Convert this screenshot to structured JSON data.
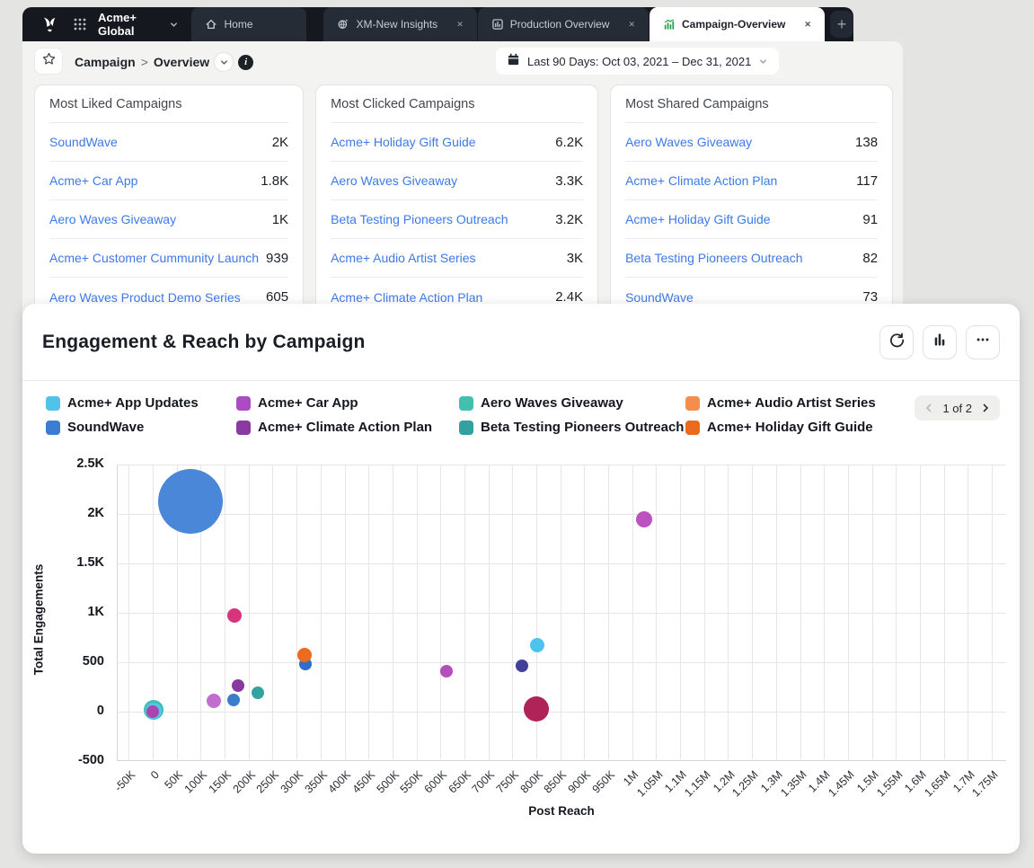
{
  "app_bar": {
    "logo_icon": "sprinklr-logo-icon",
    "launcher_icon": "app-launcher-icon",
    "workspace_label": "Acme+ Global",
    "tabs": [
      {
        "label": "Home",
        "icon": "home-icon",
        "active": false,
        "closable": false
      },
      {
        "label": "XM-New Insights",
        "icon": "insights-globe-icon",
        "active": false,
        "closable": true
      },
      {
        "label": "Production Overview",
        "icon": "dashboard-icon",
        "active": false,
        "closable": true
      },
      {
        "label": "Campaign-Overview",
        "icon": "campaign-chart-icon",
        "active": true,
        "closable": true
      }
    ],
    "add_tab_label": "+"
  },
  "toolbar": {
    "favorite_icon": "star-icon",
    "breadcrumb": {
      "section": "Campaign",
      "separator": ">",
      "page": "Overview"
    },
    "breadcrumb_expand_icon": "chevron-down-icon",
    "info_icon": "info-icon",
    "date_range": {
      "icon": "calendar-icon",
      "label": "Last 90 Days: Oct 03, 2021 – Dec 31, 2021"
    }
  },
  "leaderboards": [
    {
      "title": "Most Liked Campaigns",
      "rows": [
        {
          "campaign": "SoundWave",
          "value": "2K"
        },
        {
          "campaign": "Acme+ Car App",
          "value": "1.8K"
        },
        {
          "campaign": "Aero Waves Giveaway",
          "value": "1K"
        },
        {
          "campaign": "Acme+ Customer Cummunity Launch",
          "value": "939"
        },
        {
          "campaign": "Aero Waves Product Demo Series",
          "value": "605"
        }
      ]
    },
    {
      "title": "Most Clicked Campaigns",
      "rows": [
        {
          "campaign": "Acme+ Holiday Gift Guide",
          "value": "6.2K"
        },
        {
          "campaign": "Aero Waves Giveaway",
          "value": "3.3K"
        },
        {
          "campaign": "Beta Testing Pioneers Outreach",
          "value": "3.2K"
        },
        {
          "campaign": "Acme+ Audio Artist Series",
          "value": "3K"
        },
        {
          "campaign": "Acme+ Climate Action Plan",
          "value": "2.4K"
        }
      ]
    },
    {
      "title": "Most Shared Campaigns",
      "rows": [
        {
          "campaign": "Aero Waves Giveaway",
          "value": "138"
        },
        {
          "campaign": "Acme+ Climate Action Plan",
          "value": "117"
        },
        {
          "campaign": "Acme+ Holiday Gift Guide",
          "value": "91"
        },
        {
          "campaign": "Beta Testing Pioneers Outreach",
          "value": "82"
        },
        {
          "campaign": "SoundWave",
          "value": "73"
        }
      ]
    }
  ],
  "widget": {
    "title": "Engagement & Reach by Campaign",
    "action_icons": [
      "refresh-icon",
      "column-chart-icon",
      "more-options-icon"
    ],
    "pagination": {
      "label": "1 of 2",
      "prev_disabled": true
    }
  },
  "chart_data": {
    "type": "scatter",
    "subtype": "bubble",
    "title": "Engagement & Reach by Campaign",
    "xlabel": "Post Reach",
    "ylabel": "Total Engagements",
    "grid": true,
    "legend_position": "top",
    "legend": [
      {
        "label": "Acme+ App Updates",
        "color": "#4FC3EA"
      },
      {
        "label": "Acme+ Car App",
        "color": "#AC4BC4"
      },
      {
        "label": "Aero Waves Giveaway",
        "color": "#43BFAF"
      },
      {
        "label": "Acme+ Audio Artist Series",
        "color": "#F68E4B"
      },
      {
        "label": "SoundWave",
        "color": "#3C7CD2"
      },
      {
        "label": "Acme+ Climate Action Plan",
        "color": "#8A3AA2"
      },
      {
        "label": "Beta Testing Pioneers Outreach",
        "color": "#34A0A0"
      },
      {
        "label": "Acme+ Holiday Gift Guide",
        "color": "#EB6A1D"
      }
    ],
    "xlim": [
      -75000,
      1780000
    ],
    "ylim": [
      -500,
      2500
    ],
    "x_tick_values": [
      -50000,
      0,
      50000,
      100000,
      150000,
      200000,
      250000,
      300000,
      350000,
      400000,
      450000,
      500000,
      550000,
      600000,
      650000,
      700000,
      750000,
      800000,
      850000,
      900000,
      950000,
      1000000,
      1050000,
      1100000,
      1150000,
      1200000,
      1250000,
      1300000,
      1350000,
      1400000,
      1450000,
      1500000,
      1550000,
      1600000,
      1650000,
      1700000,
      1750000
    ],
    "x_tick_labels": [
      "-50K",
      "0",
      "50K",
      "100K",
      "150K",
      "200K",
      "250K",
      "300K",
      "350K",
      "400K",
      "450K",
      "500K",
      "550K",
      "600K",
      "650K",
      "700K",
      "750K",
      "800K",
      "850K",
      "900K",
      "950K",
      "1M",
      "1.05M",
      "1.1M",
      "1.15M",
      "1.2M",
      "1.25M",
      "1.3M",
      "1.35M",
      "1.4M",
      "1.45M",
      "1.5M",
      "1.55M",
      "1.6M",
      "1.65M",
      "1.7M",
      "1.75M"
    ],
    "y_tick_values": [
      2500,
      2000,
      1500,
      1000,
      500,
      0,
      -500
    ],
    "y_tick_labels": [
      "2.5K",
      "2K",
      "1.5K",
      "1K",
      "500",
      "0",
      "-500"
    ],
    "points": [
      {
        "label": "SoundWave",
        "color": "#4A87D9",
        "x": 78000,
        "y": 2130,
        "r": 36
      },
      {
        "label": "",
        "color": "#B02358",
        "x": 800000,
        "y": 25,
        "r": 14
      },
      {
        "label": "Aero Waves Giveaway",
        "color": "#3FBFB4",
        "x": 2000,
        "y": 15,
        "r": 11
      },
      {
        "label": "Acme+ App Updates",
        "color": "#56C5EA",
        "x": 2000,
        "y": 12,
        "r": 9
      },
      {
        "label": "",
        "color": "#AD44AD",
        "x": 0,
        "y": 0,
        "r": 7
      },
      {
        "label": "",
        "color": "#D6347C",
        "x": 170000,
        "y": 975,
        "r": 8
      },
      {
        "label": "SoundWave",
        "color": "#2F70C5",
        "x": 318000,
        "y": 485,
        "r": 7
      },
      {
        "label": "Acme+ Holiday Gift Guide",
        "color": "#EC6B1F",
        "x": 316000,
        "y": 570,
        "r": 8
      },
      {
        "label": "Acme+ Climate Action Plan",
        "color": "#8938A0",
        "x": 178000,
        "y": 265,
        "r": 7
      },
      {
        "label": "Beta Testing Pioneers Outreach",
        "color": "#35A2A2",
        "x": 220000,
        "y": 190,
        "r": 7
      },
      {
        "label": "Acme+ Car App",
        "color": "#C06FD0",
        "x": 128000,
        "y": 110,
        "r": 8
      },
      {
        "label": "SoundWave",
        "color": "#3B7DC8",
        "x": 168000,
        "y": 120,
        "r": 7
      },
      {
        "label": "Acme+ Car App",
        "color": "#BA52C0",
        "x": 1025000,
        "y": 1945,
        "r": 9
      },
      {
        "label": "Acme+ App Updates",
        "color": "#4FC3F0",
        "x": 802000,
        "y": 670,
        "r": 8
      },
      {
        "label": "",
        "color": "#41409B",
        "x": 770000,
        "y": 460,
        "r": 7
      },
      {
        "label": "",
        "color": "#B44EBB",
        "x": 612000,
        "y": 410,
        "r": 7
      }
    ]
  }
}
